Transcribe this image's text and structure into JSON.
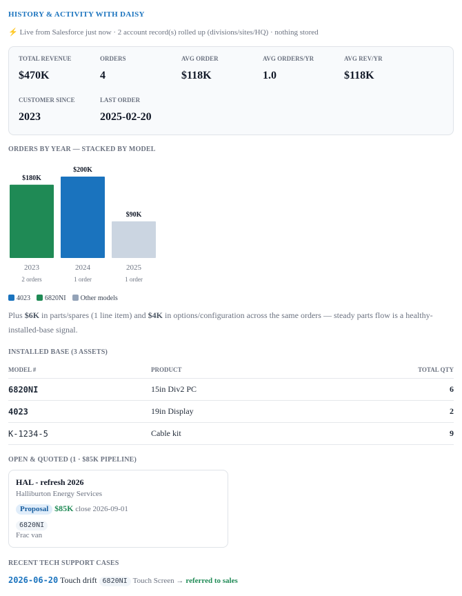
{
  "header": {
    "title": "HISTORY & ACTIVITY WITH DAISY",
    "subtitle": "⚡ Live from Salesforce just now · 2 account record(s) rolled up (divisions/sites/HQ) · nothing stored"
  },
  "stats": [
    {
      "label": "TOTAL REVENUE",
      "value": "$470K"
    },
    {
      "label": "ORDERS",
      "value": "4"
    },
    {
      "label": "AVG ORDER",
      "value": "$118K"
    },
    {
      "label": "AVG ORDERS/YR",
      "value": "1.0"
    },
    {
      "label": "AVG REV/YR",
      "value": "$118K"
    },
    {
      "label": "CUSTOMER SINCE",
      "value": "2023"
    },
    {
      "label": "LAST ORDER",
      "value": "2025-02-20"
    }
  ],
  "chart_data": {
    "type": "bar",
    "title": "ORDERS BY YEAR — STACKED BY MODEL",
    "categories": [
      "2023",
      "2024",
      "2025"
    ],
    "values": [
      180,
      200,
      90
    ],
    "value_labels": [
      "$180K",
      "$200K",
      "$90K"
    ],
    "colors": [
      "#1f8a55",
      "#1a73be",
      "#cbd5e1"
    ],
    "sublabels": [
      "2 orders",
      "1 order",
      "1 order"
    ],
    "legend": [
      {
        "name": "4023",
        "color": "#1a73be"
      },
      {
        "name": "6820NI",
        "color": "#1f8a55"
      },
      {
        "name": "Other models",
        "color": "#94a3b8"
      }
    ]
  },
  "note": {
    "a": "Plus ",
    "b": "$6K",
    "c": " in parts/spares (1 line item) and ",
    "d": "$4K",
    "e": " in options/configuration across the same orders — steady parts flow is a healthy-installed-base signal."
  },
  "installed_base": {
    "title": "INSTALLED BASE (3 ASSETS)",
    "columns": [
      "MODEL #",
      "PRODUCT",
      "TOTAL QTY"
    ],
    "rows": [
      [
        "6820NI",
        "15in Div2 PC",
        6
      ],
      [
        "4023",
        "19in Display",
        2
      ],
      [
        "K-1234-5",
        "Cable kit",
        9
      ]
    ]
  },
  "pipeline": {
    "title": "OPEN & QUOTED (1 · $85K PIPELINE)",
    "cards": [
      {
        "title": "HAL - refresh 2026",
        "account": "Halliburton Energy Services",
        "stage": "Proposal",
        "amount": "$85K",
        "close": "close 2026-09-01",
        "model": "6820NI",
        "note": "Frac van"
      }
    ]
  },
  "support": {
    "title": "RECENT TECH SUPPORT CASES",
    "cases": [
      {
        "date": "2026-06-20",
        "subject": "Touch drift",
        "model": "6820NI",
        "component": "Touch Screen →",
        "outcome": "referred to sales"
      }
    ]
  }
}
